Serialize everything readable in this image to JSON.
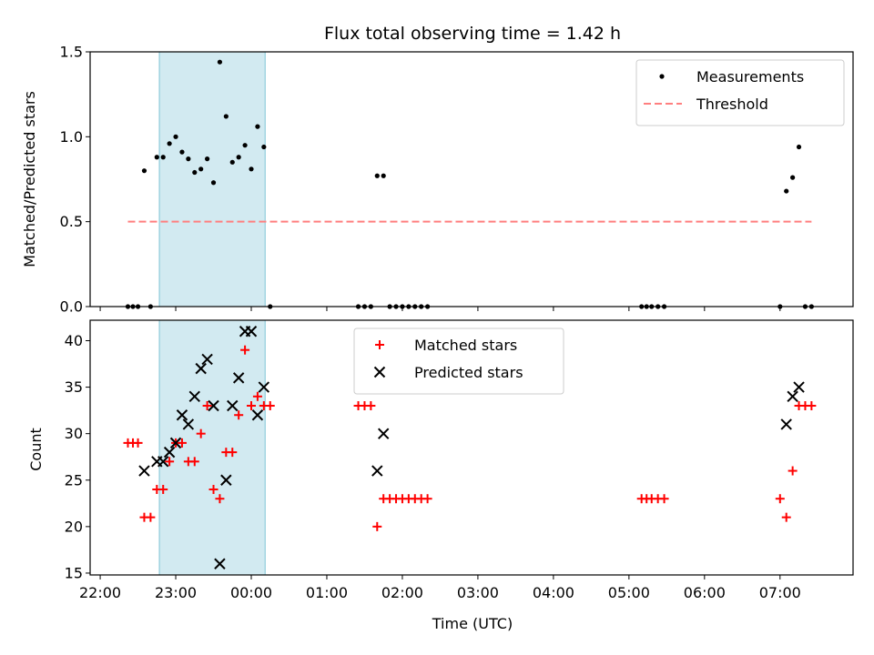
{
  "title": "Flux total observing time = 1.42 h",
  "xlabel": "Time (UTC)",
  "colors": {
    "band": "#add8e6",
    "measurement": "#000000",
    "threshold": "#ff7f7f",
    "matched": "#ff0000",
    "predicted": "#000000"
  },
  "chart_data": [
    {
      "type": "scatter",
      "name": "top-panel",
      "ylabel": "Matched/Predicted stars",
      "xlim": [
        "21:52",
        "07:58"
      ],
      "ylim": [
        0,
        1.5
      ],
      "yticks": [
        0.0,
        0.5,
        1.0,
        1.5
      ],
      "ytick_labels": [
        "0.0",
        "0.5",
        "1.0",
        "1.5"
      ],
      "grid": false,
      "legend_position": "top-right",
      "highlight_span": [
        "22:47",
        "00:11"
      ],
      "threshold": {
        "name": "Threshold",
        "value": 0.5,
        "x_range": [
          "22:22",
          "07:25"
        ]
      },
      "series": [
        {
          "name": "Measurements",
          "marker": "dot",
          "points": [
            [
              "22:22",
              0
            ],
            [
              "22:26",
              0
            ],
            [
              "22:30",
              0
            ],
            [
              "22:35",
              0.8
            ],
            [
              "22:40",
              0
            ],
            [
              "22:45",
              0.88
            ],
            [
              "22:50",
              0.88
            ],
            [
              "22:55",
              0.96
            ],
            [
              "23:00",
              1.0
            ],
            [
              "23:05",
              0.91
            ],
            [
              "23:10",
              0.87
            ],
            [
              "23:15",
              0.79
            ],
            [
              "23:20",
              0.81
            ],
            [
              "23:25",
              0.87
            ],
            [
              "23:30",
              0.73
            ],
            [
              "23:35",
              1.44
            ],
            [
              "23:40",
              1.12
            ],
            [
              "23:45",
              0.85
            ],
            [
              "23:50",
              0.88
            ],
            [
              "23:55",
              0.95
            ],
            [
              "00:00",
              0.81
            ],
            [
              "00:05",
              1.06
            ],
            [
              "00:10",
              0.94
            ],
            [
              "00:15",
              0
            ],
            [
              "01:25",
              0
            ],
            [
              "01:30",
              0
            ],
            [
              "01:35",
              0
            ],
            [
              "01:40",
              0.77
            ],
            [
              "01:45",
              0.77
            ],
            [
              "01:50",
              0
            ],
            [
              "01:55",
              0
            ],
            [
              "02:00",
              0
            ],
            [
              "02:05",
              0
            ],
            [
              "02:10",
              0
            ],
            [
              "02:15",
              0
            ],
            [
              "02:20",
              0
            ],
            [
              "05:10",
              0
            ],
            [
              "05:14",
              0
            ],
            [
              "05:18",
              0
            ],
            [
              "05:23",
              0
            ],
            [
              "05:28",
              0
            ],
            [
              "07:00",
              0
            ],
            [
              "07:05",
              0.68
            ],
            [
              "07:10",
              0.76
            ],
            [
              "07:15",
              0.94
            ],
            [
              "07:20",
              0
            ],
            [
              "07:25",
              0
            ]
          ]
        }
      ]
    },
    {
      "type": "scatter",
      "name": "bottom-panel",
      "ylabel": "Count",
      "xlim": [
        "21:52",
        "07:58"
      ],
      "ylim": [
        14.8,
        42.2
      ],
      "yticks": [
        15,
        20,
        25,
        30,
        35,
        40
      ],
      "ytick_labels": [
        "15",
        "20",
        "25",
        "30",
        "35",
        "40"
      ],
      "xticks": [
        "22:00",
        "23:00",
        "00:00",
        "01:00",
        "02:00",
        "03:00",
        "04:00",
        "05:00",
        "06:00",
        "07:00"
      ],
      "xtick_labels": [
        "22:00",
        "23:00",
        "00:00",
        "01:00",
        "02:00",
        "03:00",
        "04:00",
        "05:00",
        "06:00",
        "07:00"
      ],
      "grid": false,
      "legend_position": "top-center",
      "highlight_span": [
        "22:47",
        "00:11"
      ],
      "series": [
        {
          "name": "Matched stars",
          "marker": "plus",
          "points": [
            [
              "22:22",
              29
            ],
            [
              "22:26",
              29
            ],
            [
              "22:30",
              29
            ],
            [
              "22:35",
              21
            ],
            [
              "22:40",
              21
            ],
            [
              "22:45",
              24
            ],
            [
              "22:50",
              24
            ],
            [
              "22:55",
              27
            ],
            [
              "23:00",
              29
            ],
            [
              "23:05",
              29
            ],
            [
              "23:10",
              27
            ],
            [
              "23:15",
              27
            ],
            [
              "23:20",
              30
            ],
            [
              "23:25",
              33
            ],
            [
              "23:30",
              24
            ],
            [
              "23:35",
              23
            ],
            [
              "23:40",
              28
            ],
            [
              "23:45",
              28
            ],
            [
              "23:50",
              32
            ],
            [
              "23:55",
              39
            ],
            [
              "00:00",
              33
            ],
            [
              "00:05",
              34
            ],
            [
              "00:10",
              33
            ],
            [
              "00:15",
              33
            ],
            [
              "01:25",
              33
            ],
            [
              "01:30",
              33
            ],
            [
              "01:35",
              33
            ],
            [
              "01:40",
              20
            ],
            [
              "01:45",
              23
            ],
            [
              "01:50",
              23
            ],
            [
              "01:55",
              23
            ],
            [
              "02:00",
              23
            ],
            [
              "02:05",
              23
            ],
            [
              "02:10",
              23
            ],
            [
              "02:15",
              23
            ],
            [
              "02:20",
              23
            ],
            [
              "05:10",
              23
            ],
            [
              "05:14",
              23
            ],
            [
              "05:18",
              23
            ],
            [
              "05:23",
              23
            ],
            [
              "05:28",
              23
            ],
            [
              "07:00",
              23
            ],
            [
              "07:05",
              21
            ],
            [
              "07:10",
              26
            ],
            [
              "07:15",
              33
            ],
            [
              "07:20",
              33
            ],
            [
              "07:25",
              33
            ]
          ]
        },
        {
          "name": "Predicted stars",
          "marker": "x",
          "points": [
            [
              "22:35",
              26
            ],
            [
              "22:45",
              27
            ],
            [
              "22:50",
              27
            ],
            [
              "22:55",
              28
            ],
            [
              "23:00",
              29
            ],
            [
              "23:05",
              32
            ],
            [
              "23:10",
              31
            ],
            [
              "23:15",
              34
            ],
            [
              "23:20",
              37
            ],
            [
              "23:25",
              38
            ],
            [
              "23:30",
              33
            ],
            [
              "23:35",
              16
            ],
            [
              "23:40",
              25
            ],
            [
              "23:45",
              33
            ],
            [
              "23:50",
              36
            ],
            [
              "23:55",
              41
            ],
            [
              "00:00",
              41
            ],
            [
              "00:05",
              32
            ],
            [
              "00:10",
              35
            ],
            [
              "01:40",
              26
            ],
            [
              "01:45",
              30
            ],
            [
              "07:05",
              31
            ],
            [
              "07:10",
              34
            ],
            [
              "07:15",
              35
            ]
          ]
        }
      ]
    }
  ]
}
